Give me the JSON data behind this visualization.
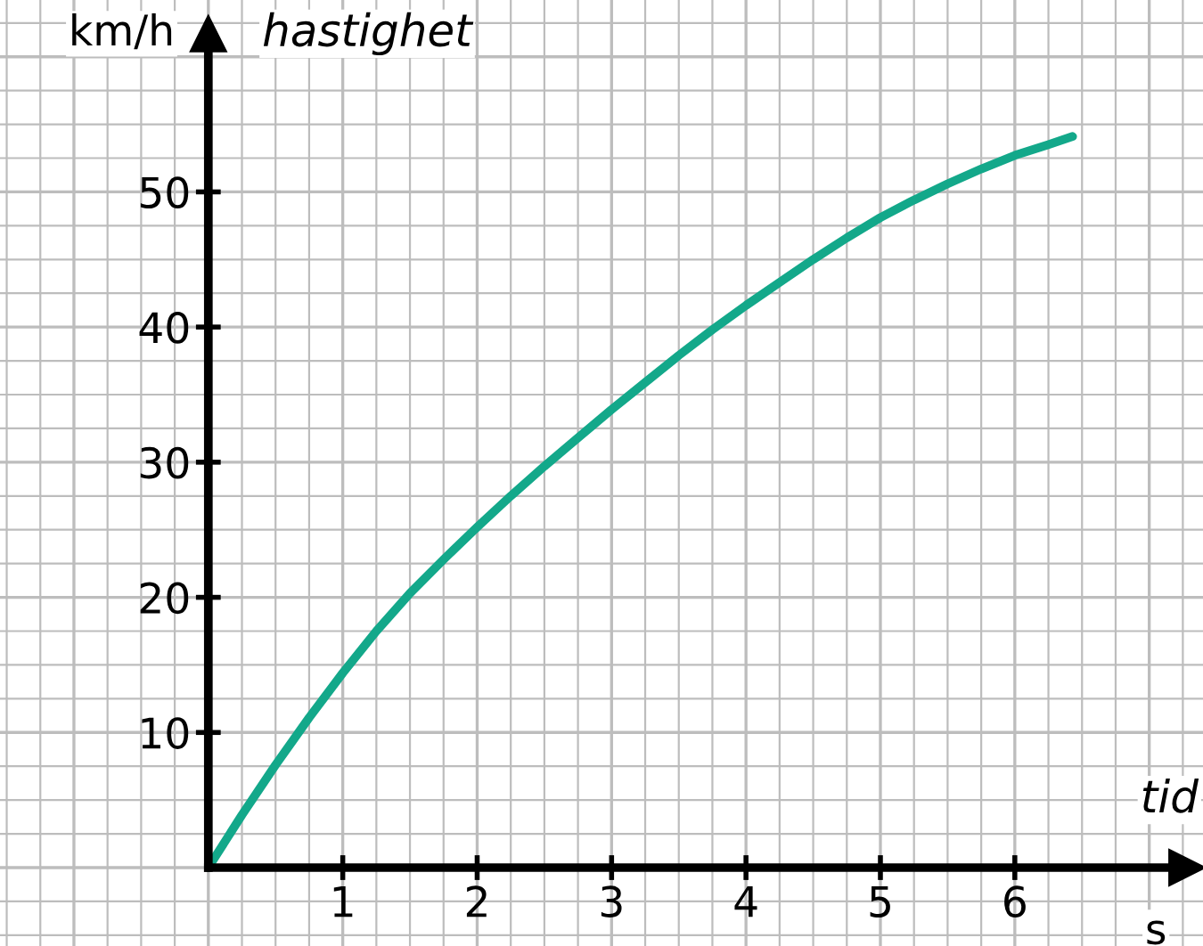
{
  "chart_data": {
    "type": "line",
    "xlabel": "tid",
    "ylabel": "hastighet",
    "annotations": [
      "km/h",
      "s"
    ],
    "x": [
      0,
      0.25,
      0.5,
      0.75,
      1,
      1.25,
      1.5,
      1.75,
      2,
      2.25,
      2.5,
      2.75,
      3,
      3.25,
      3.5,
      3.75,
      4,
      4.25,
      4.5,
      4.75,
      5,
      5.25,
      5.5,
      5.75,
      6,
      6.25,
      6.43
    ],
    "series": [
      {
        "color": "#13a88a",
        "values": [
          0,
          3.9,
          7.6,
          11.1,
          14.4,
          17.5,
          20.3,
          22.8,
          25.2,
          27.5,
          29.7,
          31.8,
          33.9,
          35.9,
          37.9,
          39.8,
          41.6,
          43.3,
          45,
          46.6,
          48.1,
          49.4,
          50.6,
          51.7,
          52.7,
          53.5,
          54.1
        ]
      }
    ],
    "xlim": [
      -1.55,
      7.4
    ],
    "ylim": [
      -5.8,
      64.2
    ],
    "xticks": [
      1,
      2,
      3,
      4,
      5,
      6
    ],
    "yticks": [
      10,
      20,
      30,
      40,
      50
    ],
    "grid": true,
    "marker": "none",
    "line_style": "solid"
  }
}
